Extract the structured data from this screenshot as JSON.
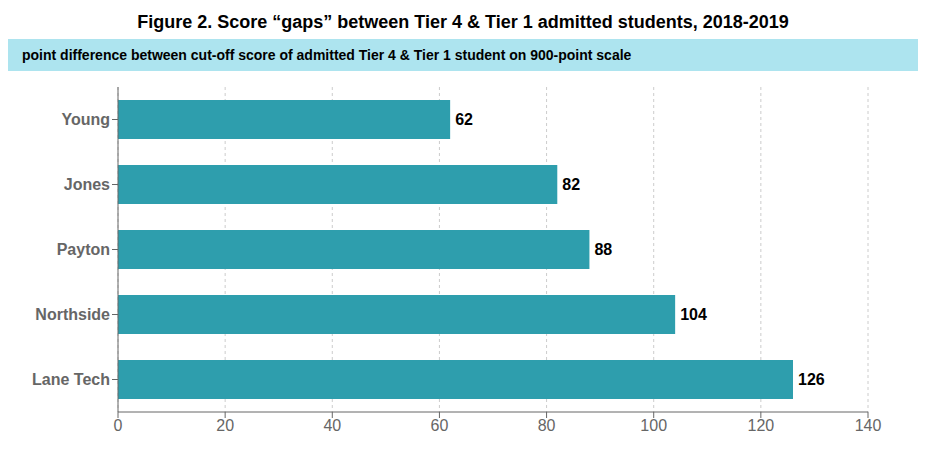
{
  "chart_data": {
    "type": "bar",
    "orientation": "horizontal",
    "title": "Figure 2. Score “gaps” between Tier 4 & Tier 1 admitted students, 2018-2019",
    "subtitle": "point difference between cut-off score of admitted Tier 4 & Tier 1 student on 900-point scale",
    "categories": [
      "Lane Tech",
      "Northside",
      "Payton",
      "Jones",
      "Young"
    ],
    "values": [
      126,
      104,
      88,
      82,
      62
    ],
    "color": "#2E9EAD",
    "xlim": [
      0,
      140
    ],
    "xticks": [
      0,
      20,
      40,
      60,
      80,
      100,
      120,
      140
    ],
    "grid": true,
    "data_labels": true
  }
}
